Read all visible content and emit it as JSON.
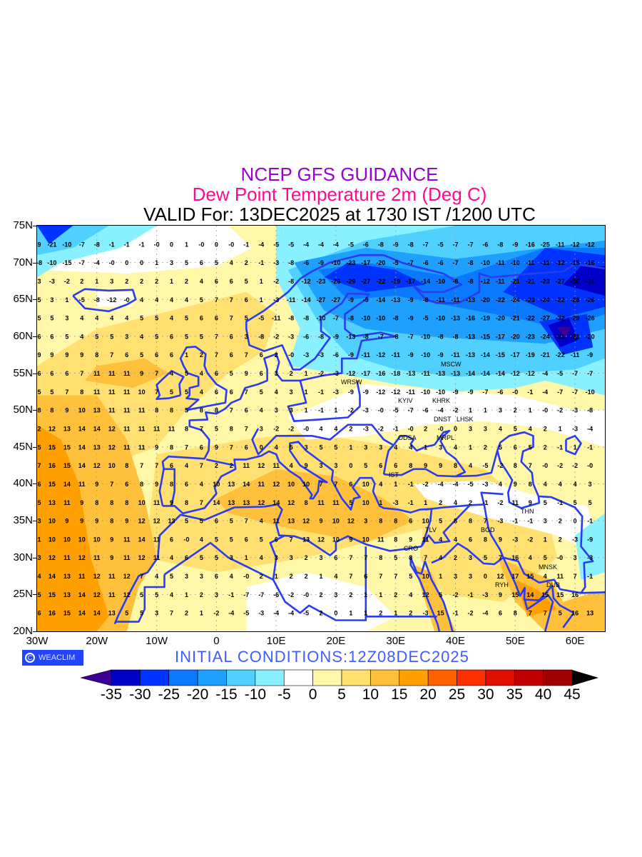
{
  "header": {
    "line1": "NCEP GFS GUIDANCE",
    "line2": "Dew Point Temperature 2m (Deg C)",
    "line3": "VALID For: 13DEC2025 at 1730 IST /1200 UTC"
  },
  "axes": {
    "y_labels": [
      "75N",
      "70N",
      "65N",
      "60N",
      "55N",
      "50N",
      "45N",
      "40N",
      "35N",
      "30N",
      "25N",
      "20N"
    ],
    "x_labels": [
      "30W",
      "20W",
      "10W",
      "0",
      "10E",
      "20E",
      "30E",
      "40E",
      "50E",
      "60E"
    ]
  },
  "cities": [
    "MSCW",
    "WRSW",
    "KYIV",
    "KHRK",
    "LHSK",
    "DNST",
    "MRPL",
    "ODSA",
    "IST",
    "THN",
    "BGD",
    "TLV",
    "CRO",
    "RYH",
    "MNSK",
    "DUB"
  ],
  "grid_values": {
    "rows": [
      [
        9,
        -21,
        -10,
        -7,
        -8,
        -1,
        -1,
        -1,
        0,
        0,
        1,
        0,
        0,
        0,
        -1,
        -4,
        -5,
        -5,
        -4,
        -4,
        -4,
        -5,
        -6,
        -8,
        -9,
        -8,
        -7,
        -5,
        -7,
        -7,
        -6,
        -8,
        -9,
        -16,
        -25,
        -11,
        -12,
        -12
      ],
      [
        -8,
        -10,
        -15,
        -7,
        -4,
        0,
        0,
        0,
        1,
        3,
        5,
        6,
        5,
        4,
        2,
        -1,
        -3,
        -8,
        -6,
        -9,
        -10,
        -23,
        -17,
        -20,
        -5,
        -7,
        -6,
        -6,
        -7,
        -8,
        -10,
        -11,
        -10,
        -11,
        -11,
        -12,
        -15,
        -16
      ],
      [
        3,
        -3,
        -2,
        2,
        1,
        3,
        2,
        2,
        2,
        1,
        2,
        4,
        6,
        6,
        5,
        1,
        -2,
        -8,
        -12,
        -23,
        -26,
        -29,
        -27,
        -22,
        -19,
        -17,
        -14,
        -10,
        -8,
        -8,
        -12,
        -11,
        -21,
        -21,
        -23,
        -27,
        -30,
        -31
      ],
      [
        5,
        3,
        1,
        -5,
        -8,
        -12,
        0,
        4,
        4,
        4,
        4,
        5,
        7,
        7,
        6,
        1,
        -3,
        -11,
        -14,
        -27,
        -27,
        -9,
        -9,
        -14,
        -13,
        -9,
        -8,
        -11,
        -11,
        -13,
        -20,
        -22,
        -24,
        -23,
        -24,
        -22,
        -28,
        -26
      ],
      [
        5,
        5,
        3,
        4,
        4,
        4,
        4,
        5,
        5,
        4,
        5,
        6,
        6,
        7,
        5,
        -5,
        -11,
        -8,
        -8,
        -10,
        -7,
        -8,
        -10,
        -10,
        -8,
        -9,
        -5,
        -10,
        -13,
        -16,
        -19,
        -20,
        -21,
        -22,
        -27,
        -32,
        -29,
        -26
      ],
      [
        6,
        6,
        5,
        4,
        5,
        5,
        3,
        4,
        5,
        6,
        5,
        5,
        7,
        6,
        3,
        -8,
        -2,
        -3,
        -6,
        -8,
        -9,
        -13,
        -8,
        -7,
        -8,
        -7,
        -10,
        -8,
        -8,
        -13,
        -15,
        -17,
        -20,
        -23,
        -24,
        -31,
        -21,
        -20
      ],
      [
        9,
        9,
        9,
        9,
        8,
        7,
        6,
        5,
        6,
        6,
        1,
        2,
        7,
        6,
        7,
        6,
        2,
        0,
        -3,
        -3,
        -6,
        -9,
        -11,
        -12,
        -11,
        -9,
        -10,
        -9,
        -11,
        -13,
        -14,
        -15,
        -17,
        -19,
        -21,
        -22,
        -11,
        -9
      ],
      [
        6,
        6,
        6,
        7,
        11,
        11,
        11,
        9,
        7,
        4,
        5,
        4,
        6,
        5,
        9,
        6,
        3,
        2,
        1,
        -2,
        -3,
        -12,
        -17,
        -16,
        -18,
        -13,
        -11,
        -13,
        -13,
        -14,
        -14,
        -14,
        -12,
        -12,
        -4,
        -5,
        -7,
        -7
      ],
      [
        5,
        5,
        7,
        8,
        11,
        11,
        11,
        10,
        7,
        5,
        5,
        4,
        6,
        6,
        7,
        5,
        4,
        3,
        1,
        -1,
        -3,
        -9,
        -9,
        -12,
        -12,
        -11,
        -10,
        -10,
        -9,
        -9,
        -7,
        -6,
        0,
        -1,
        -4,
        -7,
        -7,
        -10
      ],
      [
        8,
        8,
        9,
        10,
        13,
        11,
        11,
        11,
        8,
        8,
        5,
        8,
        8,
        7,
        6,
        4,
        3,
        3,
        1,
        -1,
        1,
        -2,
        -3,
        0,
        -5,
        -7,
        -6,
        -4,
        -2,
        1,
        1,
        3,
        2,
        1,
        0,
        -2,
        -3,
        -8
      ],
      [
        2,
        12,
        13,
        14,
        14,
        12,
        11,
        11,
        11,
        11,
        8,
        7,
        5,
        8,
        7,
        3,
        -2,
        -2,
        0,
        4,
        4,
        2,
        -3,
        -2,
        -1,
        0,
        2,
        0,
        0,
        3,
        3,
        4,
        5,
        4,
        2,
        1,
        -3,
        -4
      ],
      [
        5,
        15,
        15,
        14,
        13,
        12,
        11,
        11,
        9,
        8,
        7,
        6,
        9,
        7,
        6,
        0,
        4,
        5,
        3,
        5,
        5,
        1,
        3,
        3,
        4,
        4,
        1,
        3,
        4,
        1,
        2,
        5,
        6,
        5,
        2,
        -1,
        1,
        -1
      ],
      [
        7,
        16,
        15,
        14,
        12,
        10,
        8,
        7,
        7,
        6,
        4,
        7,
        2,
        2,
        11,
        12,
        11,
        4,
        9,
        3,
        3,
        0,
        5,
        6,
        6,
        8,
        9,
        9,
        8,
        4,
        -5,
        -2,
        8,
        7,
        0,
        -2,
        -2,
        0
      ],
      [
        6,
        15,
        14,
        11,
        9,
        7,
        6,
        8,
        9,
        8,
        6,
        4,
        10,
        13,
        14,
        11,
        12,
        10,
        10,
        7,
        7,
        6,
        10,
        4,
        1,
        -1,
        -2,
        -4,
        -4,
        -5,
        -3,
        4,
        9,
        8,
        4,
        4,
        4,
        3
      ],
      [
        5,
        13,
        11,
        9,
        8,
        8,
        8,
        10,
        11,
        9,
        8,
        7,
        14,
        13,
        13,
        12,
        14,
        12,
        8,
        11,
        11,
        5,
        10,
        1,
        -3,
        -1,
        1,
        2,
        4,
        2,
        -1,
        -2,
        11,
        9,
        5,
        -1,
        5,
        5
      ],
      [
        3,
        10,
        9,
        9,
        9,
        8,
        9,
        12,
        12,
        13,
        5,
        5,
        6,
        5,
        7,
        4,
        11,
        13,
        12,
        9,
        10,
        12,
        3,
        8,
        8,
        6,
        10,
        5,
        8,
        8,
        7,
        -3,
        -1,
        -1,
        3,
        2,
        0,
        -1
      ],
      [
        1,
        10,
        10,
        10,
        10,
        9,
        11,
        14,
        11,
        6,
        0,
        4,
        5,
        5,
        6,
        5,
        6,
        7,
        13,
        12,
        10,
        9,
        10,
        11,
        8,
        9,
        11,
        4,
        4,
        6,
        8,
        9,
        -3,
        -2,
        1,
        2,
        -3,
        -9
      ],
      [
        3,
        12,
        11,
        12,
        11,
        9,
        11,
        12,
        11,
        4,
        6,
        5,
        5,
        3,
        1,
        4,
        3,
        3,
        2,
        3,
        6,
        7,
        7,
        8,
        5,
        8,
        7,
        4,
        2,
        3,
        5,
        7,
        16,
        4,
        5,
        0,
        3,
        -3
      ],
      [
        4,
        14,
        13,
        11,
        12,
        11,
        12,
        7,
        4,
        5,
        3,
        3,
        6,
        4,
        0,
        2,
        1,
        2,
        2,
        1,
        4,
        7,
        6,
        7,
        7,
        5,
        10,
        1,
        3,
        3,
        0,
        12,
        17,
        15,
        4,
        11,
        7,
        -1
      ],
      [
        5,
        15,
        13,
        14,
        12,
        11,
        12,
        5,
        5,
        4,
        1,
        2,
        3,
        -1,
        -7,
        -7,
        -6,
        -2,
        0,
        2,
        3,
        2,
        1,
        1,
        2,
        4,
        12,
        5,
        -2,
        -1,
        -3,
        9,
        15,
        14,
        15,
        15,
        16
      ],
      [
        6,
        16,
        15,
        14,
        14,
        13,
        5,
        5,
        3,
        7,
        2,
        1,
        -2,
        -4,
        -5,
        -3,
        -4,
        -4,
        -5,
        2,
        0,
        1,
        1,
        2,
        1,
        2,
        -3,
        15,
        -1,
        -2,
        -4,
        6,
        8,
        7,
        7,
        5,
        16,
        13
      ]
    ]
  },
  "footer": {
    "logo_text": "WEACLIM",
    "initial_conditions": "INITIAL  CONDITIONS:12Z08DEC2025"
  },
  "colorbar": {
    "labels": [
      "-35",
      "-30",
      "-25",
      "-20",
      "-15",
      "-10",
      "-5",
      "0",
      "5",
      "10",
      "15",
      "20",
      "25",
      "30",
      "35",
      "40",
      "45"
    ],
    "colors": [
      "#0000c8",
      "#0033ff",
      "#0a78ff",
      "#1ea0ff",
      "#50d0ff",
      "#88f0ff",
      "#ffffff",
      "#fff8a8",
      "#ffe070",
      "#ffc03c",
      "#ffa000",
      "#ff6000",
      "#ff3000",
      "#e01000",
      "#c00000",
      "#a00000"
    ],
    "below_color": "#3c0096",
    "above_color": "#000000"
  }
}
